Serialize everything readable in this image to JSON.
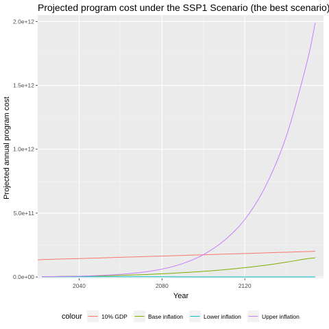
{
  "chart_data": {
    "type": "line",
    "title": "Projected program cost under the SSP1 Scenario (the best scenario)",
    "xlabel": "Year",
    "ylabel": "Projected annual program cost",
    "xlim": [
      2020,
      2158
    ],
    "ylim": [
      -10000000000.0,
      2050000000000.0
    ],
    "x_ticks": [
      2040,
      2080,
      2120
    ],
    "y_ticks": [
      0,
      500000000000.0,
      1000000000000.0,
      1500000000000.0,
      2000000000000.0
    ],
    "y_tick_labels": [
      "0.0e+00",
      "5.0e+11",
      "1.0e+12",
      "1.5e+12",
      "2.0e+12"
    ],
    "grid": true,
    "legend": {
      "position": "bottom",
      "title": "colour",
      "entries": [
        "10% GDP",
        "Base inflation",
        "Lower inflation",
        "Upper inflation"
      ]
    },
    "series": [
      {
        "name": "10% GDP",
        "color": "#f8766d",
        "x": [
          2020,
          2022,
          2030,
          2040,
          2050,
          2060,
          2070,
          2080,
          2090,
          2100,
          2110,
          2120,
          2130,
          2140,
          2150,
          2154
        ],
        "y": [
          133000000000.0,
          136000000000.0,
          140000000000.0,
          144000000000.0,
          149000000000.0,
          154000000000.0,
          159000000000.0,
          164000000000.0,
          169000000000.0,
          174000000000.0,
          179000000000.0,
          184000000000.0,
          189000000000.0,
          194000000000.0,
          199000000000.0,
          202000000000.0
        ]
      },
      {
        "name": "Base inflation",
        "color": "#7cae00",
        "x": [
          2022,
          2030,
          2040,
          2050,
          2060,
          2070,
          2080,
          2090,
          2100,
          2110,
          2120,
          2130,
          2140,
          2150,
          2154
        ],
        "y": [
          2000000000.0,
          4000000000.0,
          6000000000.0,
          9000000000.0,
          13000000000.0,
          18000000000.0,
          25000000000.0,
          34000000000.0,
          44000000000.0,
          57000000000.0,
          73000000000.0,
          92000000000.0,
          116000000000.0,
          143000000000.0,
          150000000000.0
        ]
      },
      {
        "name": "Lower inflation",
        "color": "#00bfc4",
        "x": [
          2022,
          2040,
          2060,
          2080,
          2100,
          2120,
          2140,
          2154
        ],
        "y": [
          2000000000.0,
          2000000000.0,
          2000000000.0,
          2000000000.0,
          1000000000.0,
          1000000000.0,
          1000000000.0,
          1000000000.0
        ]
      },
      {
        "name": "Upper inflation",
        "color": "#c77cff",
        "x": [
          2022,
          2030,
          2040,
          2050,
          2060,
          2070,
          2080,
          2090,
          2100,
          2110,
          2120,
          2130,
          2140,
          2150,
          2154
        ],
        "y": [
          2000000000.0,
          4000000000.0,
          6000000000.0,
          12000000000.0,
          21000000000.0,
          36000000000.0,
          62000000000.0,
          105000000000.0,
          175000000000.0,
          285000000000.0,
          450000000000.0,
          710000000000.0,
          1100000000000.0,
          1680000000000.0,
          1990000000000.0
        ]
      }
    ]
  }
}
